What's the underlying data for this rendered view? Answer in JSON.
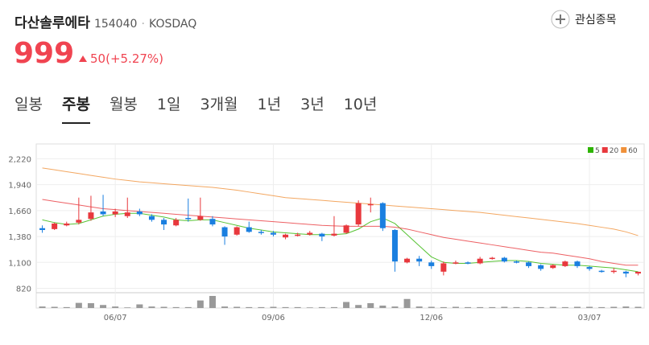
{
  "header": {
    "title": "다산솔루에타",
    "code": "154040",
    "market": "KOSDAQ",
    "price": "999",
    "change": "50(+5.27%)",
    "watch": "관심종목"
  },
  "tabs": {
    "items": [
      "일봉",
      "주봉",
      "월봉",
      "1일",
      "3개월",
      "1년",
      "3년",
      "10년"
    ],
    "active": 1
  },
  "chart_data": {
    "type": "candlestick",
    "categories": [
      null,
      null,
      null,
      null,
      null,
      null,
      "06/07",
      null,
      null,
      null,
      null,
      null,
      null,
      null,
      null,
      null,
      null,
      null,
      null,
      "09/06",
      null,
      null,
      null,
      null,
      null,
      null,
      null,
      null,
      null,
      null,
      null,
      null,
      "12/06",
      null,
      null,
      null,
      null,
      null,
      null,
      null,
      null,
      null,
      null,
      null,
      null,
      "03/07",
      null,
      null,
      null,
      null
    ],
    "open": [
      1470,
      1460,
      1500,
      1530,
      1570,
      1650,
      1620,
      1600,
      1650,
      1600,
      1560,
      1500,
      1580,
      1560,
      1570,
      1480,
      1400,
      1480,
      1430,
      1420,
      1370,
      1390,
      1400,
      1410,
      1390,
      1420,
      1510,
      1720,
      1740,
      1450,
      1100,
      1140,
      1100,
      1000,
      1090,
      1100,
      1090,
      1140,
      1150,
      1110,
      1100,
      1070,
      1040,
      1060,
      1110,
      1050,
      1010,
      1000,
      1000,
      980
    ],
    "close": [
      1450,
      1520,
      1520,
      1560,
      1640,
      1620,
      1650,
      1640,
      1620,
      1560,
      1510,
      1560,
      1570,
      1600,
      1510,
      1380,
      1480,
      1430,
      1420,
      1400,
      1400,
      1400,
      1420,
      1380,
      1410,
      1500,
      1740,
      1730,
      1470,
      1110,
      1140,
      1110,
      1060,
      1090,
      1100,
      1090,
      1140,
      1150,
      1110,
      1100,
      1060,
      1030,
      1070,
      1110,
      1060,
      1030,
      1000,
      1010,
      980,
      999
    ],
    "high": [
      1500,
      1530,
      1540,
      1800,
      1820,
      1830,
      1680,
      1800,
      1680,
      1620,
      1580,
      1580,
      1790,
      1800,
      1600,
      1490,
      1490,
      1540,
      1450,
      1440,
      1410,
      1420,
      1440,
      1420,
      1600,
      1510,
      1770,
      1800,
      1750,
      1460,
      1150,
      1170,
      1120,
      1110,
      1120,
      1110,
      1160,
      1160,
      1160,
      1120,
      1110,
      1080,
      1080,
      1120,
      1120,
      1060,
      1020,
      1040,
      1010,
      1000
    ],
    "low": [
      1420,
      1450,
      1490,
      1510,
      1550,
      1600,
      1590,
      1580,
      1600,
      1540,
      1450,
      1490,
      1540,
      1550,
      1490,
      1290,
      1390,
      1420,
      1400,
      1380,
      1350,
      1380,
      1390,
      1330,
      1380,
      1410,
      1490,
      1640,
      1440,
      1000,
      1090,
      1060,
      1030,
      960,
      1080,
      1080,
      1080,
      1130,
      1100,
      1090,
      1040,
      1010,
      1030,
      1050,
      1040,
      1010,
      990,
      980,
      940,
      960
    ],
    "up_color": "#e8383d",
    "down_color": "#1a7fe0",
    "series": [
      {
        "name": "5",
        "color": "#2db400",
        "values": [
          1560,
          1530,
          1510,
          1520,
          1560,
          1600,
          1620,
          1630,
          1630,
          1610,
          1590,
          1560,
          1550,
          1560,
          1560,
          1530,
          1500,
          1470,
          1450,
          1430,
          1420,
          1410,
          1400,
          1400,
          1400,
          1410,
          1460,
          1540,
          1580,
          1520,
          1400,
          1280,
          1160,
          1100,
          1090,
          1090,
          1100,
          1110,
          1120,
          1120,
          1110,
          1090,
          1080,
          1070,
          1070,
          1060,
          1050,
          1040,
          1020,
          1000
        ]
      },
      {
        "name": "20",
        "color": "#e8383d",
        "values": [
          1780,
          1760,
          1740,
          1720,
          1700,
          1680,
          1670,
          1660,
          1650,
          1640,
          1630,
          1620,
          1610,
          1600,
          1590,
          1580,
          1570,
          1560,
          1550,
          1540,
          1530,
          1520,
          1510,
          1500,
          1495,
          1490,
          1490,
          1490,
          1490,
          1480,
          1460,
          1430,
          1400,
          1370,
          1350,
          1330,
          1310,
          1290,
          1270,
          1250,
          1230,
          1210,
          1200,
          1180,
          1160,
          1140,
          1110,
          1090,
          1070,
          1070
        ]
      },
      {
        "name": "60",
        "color": "#f0913a",
        "values": [
          2120,
          2100,
          2080,
          2060,
          2040,
          2020,
          2000,
          1985,
          1970,
          1960,
          1950,
          1940,
          1930,
          1920,
          1910,
          1895,
          1880,
          1860,
          1840,
          1820,
          1800,
          1790,
          1780,
          1770,
          1760,
          1750,
          1740,
          1730,
          1720,
          1710,
          1700,
          1690,
          1680,
          1670,
          1660,
          1650,
          1640,
          1625,
          1610,
          1595,
          1580,
          1565,
          1550,
          1535,
          1520,
          1500,
          1480,
          1460,
          1430,
          1390
        ]
      }
    ],
    "volume": [
      5,
      4,
      3,
      17,
      16,
      10,
      5,
      2,
      12,
      5,
      4,
      3,
      3,
      25,
      40,
      5,
      4,
      3,
      3,
      4,
      3,
      3,
      2,
      3,
      3,
      20,
      10,
      16,
      8,
      5,
      30,
      5,
      4,
      3,
      4,
      3,
      3,
      3,
      4,
      3,
      3,
      3,
      4,
      3,
      4,
      4,
      3,
      4,
      5,
      4
    ],
    "volume_color": "#999999",
    "ylim": [
      790,
      2310
    ],
    "yticks": [
      820,
      {
        "value": 1100,
        "label": "1,100"
      },
      {
        "value": 1380,
        "label": "1,380"
      },
      {
        "value": 1660,
        "label": "1,660"
      },
      {
        "value": 1940,
        "label": "1,940"
      },
      {
        "value": 2220,
        "label": "2,220"
      }
    ],
    "grid": true
  }
}
